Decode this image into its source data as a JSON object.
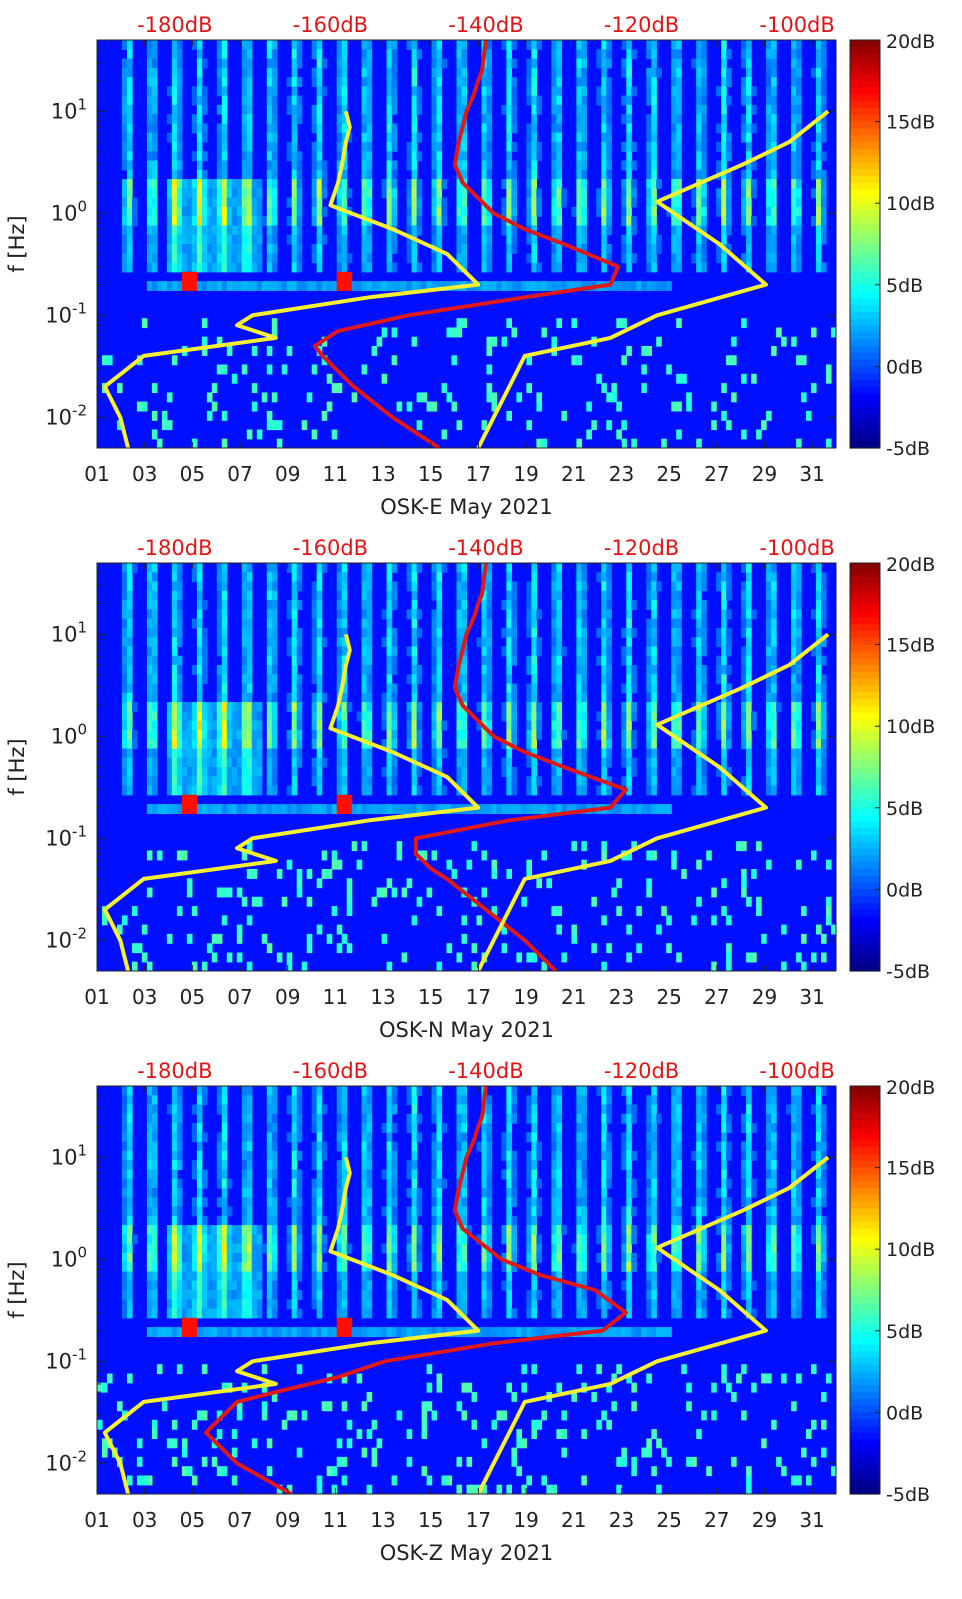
{
  "figure": {
    "top_axis_ticks": [
      "-180dB",
      "-160dB",
      "-140dB",
      "-120dB",
      "-100dB"
    ],
    "x_tick_labels": [
      "01",
      "03",
      "05",
      "07",
      "09",
      "11",
      "13",
      "15",
      "17",
      "19",
      "21",
      "23",
      "25",
      "27",
      "29",
      "31"
    ],
    "y_tick_labels": [
      "10^-2",
      "10^-1",
      "10^0",
      "10^1"
    ],
    "colorbar_labels": [
      "20dB",
      "15dB",
      "10dB",
      "5dB",
      "0dB",
      "-5dB"
    ],
    "colors": {
      "top_axis": "#e41414",
      "psd_curve": "#e01818",
      "noise_model": "#f5f030",
      "axis": "#222222"
    }
  },
  "chart_data": [
    {
      "type": "heatmap",
      "xlabel": "OSK-E May 2021",
      "ylabel": "f [Hz]",
      "x_range_days": [
        1,
        32
      ],
      "y_range_hz": [
        0.005,
        50
      ],
      "y_scale": "log",
      "colorbar_range_db": [
        -5,
        20
      ],
      "top_axis_range_db": [
        -190,
        -95
      ],
      "series": [
        {
          "f": [
            50,
            25,
            20,
            15,
            10,
            7,
            5,
            3,
            2,
            1,
            0.7,
            0.5,
            0.3,
            0.2,
            0.15,
            0.1,
            0.07,
            0.05,
            0.04,
            0.02,
            0.01,
            0.005
          ],
          "db": [
            -140,
            -140.5,
            -141,
            -141.5,
            -142.5,
            -143,
            -143.5,
            -144,
            -143,
            -139,
            -135,
            -130,
            -123,
            -124,
            -135,
            -150,
            -159,
            -162,
            -161,
            -157,
            -152,
            -146
          ]
        },
        {
          "f": [
            10,
            7,
            5,
            3,
            2,
            1.2,
            0.7,
            0.4,
            0.2,
            0.15,
            0.1,
            0.08,
            0.06,
            0.04,
            0.02,
            0.01,
            0.005
          ],
          "db": [
            -158,
            -157.5,
            -158,
            -158.5,
            -159,
            -160,
            -152,
            -145,
            -141,
            -155,
            -170,
            -172,
            -167,
            -184,
            -189,
            -187,
            -186
          ]
        },
        {
          "f": [
            10,
            5,
            3,
            1.3,
            0.5,
            0.2,
            0.1,
            0.06,
            0.04,
            0.02,
            0.01,
            0.005
          ],
          "db": [
            -96,
            -101,
            -107,
            -118,
            -110,
            -104,
            -118,
            -124,
            -135,
            -137,
            -139,
            -141
          ]
        }
      ]
    },
    {
      "type": "heatmap",
      "xlabel": "OSK-N May 2021",
      "ylabel": "f [Hz]",
      "x_range_days": [
        1,
        32
      ],
      "y_range_hz": [
        0.005,
        50
      ],
      "y_scale": "log",
      "colorbar_range_db": [
        -5,
        20
      ],
      "top_axis_range_db": [
        -190,
        -95
      ],
      "series": [
        {
          "f": [
            50,
            25,
            20,
            15,
            10,
            7,
            5,
            3,
            2,
            1,
            0.7,
            0.5,
            0.3,
            0.2,
            0.15,
            0.1,
            0.07,
            0.05,
            0.04,
            0.02,
            0.01,
            0.005
          ],
          "db": [
            -140,
            -140.5,
            -141,
            -141.5,
            -142.5,
            -143,
            -143.5,
            -144,
            -143,
            -139,
            -135,
            -130,
            -122,
            -124,
            -137,
            -149,
            -149,
            -147,
            -145,
            -140,
            -135,
            -131
          ]
        },
        {
          "f": [
            10,
            7,
            5,
            3,
            2,
            1.2,
            0.7,
            0.4,
            0.2,
            0.15,
            0.1,
            0.08,
            0.06,
            0.04,
            0.02,
            0.01,
            0.005
          ],
          "db": [
            -158,
            -157.5,
            -158,
            -158.5,
            -159,
            -160,
            -152,
            -145,
            -141,
            -155,
            -170,
            -172,
            -167,
            -184,
            -189,
            -187,
            -186
          ]
        },
        {
          "f": [
            10,
            5,
            3,
            1.3,
            0.5,
            0.2,
            0.1,
            0.06,
            0.04,
            0.02,
            0.01,
            0.005
          ],
          "db": [
            -96,
            -101,
            -107,
            -118,
            -110,
            -104,
            -118,
            -124,
            -135,
            -137,
            -139,
            -141
          ]
        }
      ]
    },
    {
      "type": "heatmap",
      "xlabel": "OSK-Z May 2021",
      "ylabel": "f [Hz]",
      "x_range_days": [
        1,
        32
      ],
      "y_range_hz": [
        0.005,
        50
      ],
      "y_scale": "log",
      "colorbar_range_db": [
        -5,
        20
      ],
      "top_axis_range_db": [
        -190,
        -95
      ],
      "series": [
        {
          "f": [
            50,
            25,
            20,
            15,
            10,
            7,
            5,
            3,
            2,
            1,
            0.7,
            0.5,
            0.3,
            0.2,
            0.15,
            0.1,
            0.07,
            0.05,
            0.04,
            0.02,
            0.01,
            0.005
          ],
          "db": [
            -140,
            -140.5,
            -141,
            -141.5,
            -142.5,
            -143,
            -143.5,
            -144,
            -143,
            -138,
            -133,
            -126,
            -122,
            -125,
            -139,
            -153,
            -159,
            -167,
            -172,
            -176,
            -172,
            -165
          ]
        },
        {
          "f": [
            10,
            7,
            5,
            3,
            2,
            1.2,
            0.7,
            0.4,
            0.2,
            0.15,
            0.1,
            0.08,
            0.06,
            0.04,
            0.02,
            0.01,
            0.005
          ],
          "db": [
            -158,
            -157.5,
            -158,
            -158.5,
            -159,
            -160,
            -152,
            -145,
            -141,
            -155,
            -170,
            -172,
            -167,
            -184,
            -189,
            -187,
            -186
          ]
        },
        {
          "f": [
            10,
            5,
            3,
            1.3,
            0.5,
            0.2,
            0.1,
            0.06,
            0.04,
            0.02,
            0.01,
            0.005
          ],
          "db": [
            -96,
            -101,
            -107,
            -118,
            -110,
            -104,
            -118,
            -124,
            -135,
            -137,
            -139,
            -141
          ]
        }
      ]
    }
  ]
}
